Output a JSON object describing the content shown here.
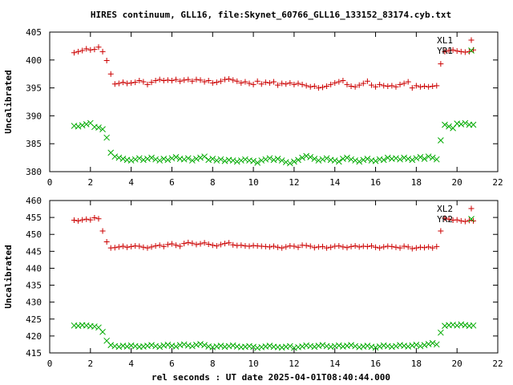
{
  "chart_data": [
    {
      "type": "scatter",
      "title": "HIRES continuum, GLL16, file:Skynet_60766_GLL16_133152_83174.cyb.txt",
      "xlabel": "",
      "ylabel": "Uncalibrated",
      "xlim": [
        0,
        22
      ],
      "ylim": [
        380,
        405
      ],
      "xticks": [
        0,
        2,
        4,
        6,
        8,
        10,
        12,
        14,
        16,
        18,
        20,
        22
      ],
      "yticks": [
        380,
        385,
        390,
        395,
        400,
        405
      ],
      "legend_position": "top-right",
      "grid": false,
      "x": [
        1.2,
        1.4,
        1.6,
        1.8,
        2.0,
        2.2,
        2.4,
        2.6,
        2.8,
        3.0,
        3.2,
        3.4,
        3.6,
        3.8,
        4.0,
        4.2,
        4.4,
        4.6,
        4.8,
        5.0,
        5.2,
        5.4,
        5.6,
        5.8,
        6.0,
        6.2,
        6.4,
        6.6,
        6.8,
        7.0,
        7.2,
        7.4,
        7.6,
        7.8,
        8.0,
        8.2,
        8.4,
        8.6,
        8.8,
        9.0,
        9.2,
        9.4,
        9.6,
        9.8,
        10.0,
        10.2,
        10.4,
        10.6,
        10.8,
        11.0,
        11.2,
        11.4,
        11.6,
        11.8,
        12.0,
        12.2,
        12.4,
        12.6,
        12.8,
        13.0,
        13.2,
        13.4,
        13.6,
        13.8,
        14.0,
        14.2,
        14.4,
        14.6,
        14.8,
        15.0,
        15.2,
        15.4,
        15.6,
        15.8,
        16.0,
        16.2,
        16.4,
        16.6,
        16.8,
        17.0,
        17.2,
        17.4,
        17.6,
        17.8,
        18.0,
        18.2,
        18.4,
        18.6,
        18.8,
        19.0,
        19.2,
        19.4,
        19.6,
        19.8,
        20.0,
        20.2,
        20.4,
        20.6,
        20.8
      ],
      "series": [
        {
          "name": "XL1",
          "marker": "plus",
          "color": "#cc0000",
          "values": [
            401.3,
            401.5,
            401.7,
            402.0,
            401.8,
            401.9,
            402.3,
            401.5,
            399.9,
            397.5,
            395.7,
            395.8,
            396.0,
            395.8,
            395.9,
            396.0,
            396.3,
            396.1,
            395.6,
            396.0,
            396.3,
            396.5,
            396.3,
            396.4,
            396.3,
            396.5,
            396.2,
            396.4,
            396.5,
            396.2,
            396.5,
            396.4,
            396.1,
            396.3,
            395.9,
            396.0,
            396.2,
            396.5,
            396.6,
            396.4,
            396.2,
            395.9,
            396.1,
            395.8,
            395.6,
            396.2,
            395.7,
            396.0,
            395.9,
            396.1,
            395.5,
            395.8,
            395.7,
            395.9,
            395.6,
            395.8,
            395.6,
            395.4,
            395.2,
            395.3,
            395.0,
            395.1,
            395.3,
            395.6,
            395.9,
            396.1,
            396.3,
            395.6,
            395.3,
            395.2,
            395.5,
            395.8,
            396.2,
            395.5,
            395.2,
            395.6,
            395.4,
            395.3,
            395.4,
            395.2,
            395.6,
            395.8,
            396.1,
            395.0,
            395.4,
            395.2,
            395.3,
            395.2,
            395.3,
            395.4,
            399.3,
            401.5,
            401.7,
            401.8,
            401.6,
            401.5,
            401.4,
            401.5,
            401.8
          ]
        },
        {
          "name": "YR1",
          "marker": "cross",
          "color": "#00aa00",
          "values": [
            388.2,
            388.1,
            388.3,
            388.5,
            388.7,
            388.0,
            387.9,
            387.6,
            386.1,
            383.4,
            382.7,
            382.5,
            382.3,
            382.1,
            382.0,
            382.2,
            382.4,
            382.1,
            382.3,
            382.5,
            382.2,
            382.0,
            382.3,
            382.1,
            382.4,
            382.6,
            382.3,
            382.2,
            382.4,
            382.0,
            382.3,
            382.5,
            382.7,
            382.1,
            382.3,
            382.0,
            382.2,
            381.9,
            382.1,
            382.0,
            381.8,
            382.0,
            382.2,
            382.0,
            381.9,
            381.6,
            382.0,
            382.2,
            382.4,
            382.1,
            382.3,
            382.0,
            381.7,
            381.5,
            381.8,
            382.1,
            382.5,
            382.8,
            382.6,
            382.3,
            382.0,
            382.2,
            382.4,
            382.1,
            382.0,
            381.8,
            382.3,
            382.5,
            382.2,
            382.0,
            381.8,
            382.1,
            382.3,
            382.0,
            381.9,
            382.2,
            382.1,
            382.5,
            382.3,
            382.4,
            382.2,
            382.5,
            382.3,
            382.1,
            382.4,
            382.6,
            382.3,
            382.7,
            382.5,
            382.2,
            385.6,
            388.4,
            388.1,
            387.8,
            388.6,
            388.5,
            388.7,
            388.4,
            388.4
          ]
        }
      ]
    },
    {
      "type": "scatter",
      "title": "",
      "xlabel": "rel seconds : UT date 2025-04-01T08:40:44.000",
      "ylabel": "Uncalibrated",
      "xlim": [
        0,
        22
      ],
      "ylim": [
        415,
        460
      ],
      "xticks": [
        0,
        2,
        4,
        6,
        8,
        10,
        12,
        14,
        16,
        18,
        20,
        22
      ],
      "yticks": [
        415,
        420,
        425,
        430,
        435,
        440,
        445,
        450,
        455,
        460
      ],
      "legend_position": "top-right",
      "grid": false,
      "x": [
        1.2,
        1.4,
        1.6,
        1.8,
        2.0,
        2.2,
        2.4,
        2.6,
        2.8,
        3.0,
        3.2,
        3.4,
        3.6,
        3.8,
        4.0,
        4.2,
        4.4,
        4.6,
        4.8,
        5.0,
        5.2,
        5.4,
        5.6,
        5.8,
        6.0,
        6.2,
        6.4,
        6.6,
        6.8,
        7.0,
        7.2,
        7.4,
        7.6,
        7.8,
        8.0,
        8.2,
        8.4,
        8.6,
        8.8,
        9.0,
        9.2,
        9.4,
        9.6,
        9.8,
        10.0,
        10.2,
        10.4,
        10.6,
        10.8,
        11.0,
        11.2,
        11.4,
        11.6,
        11.8,
        12.0,
        12.2,
        12.4,
        12.6,
        12.8,
        13.0,
        13.2,
        13.4,
        13.6,
        13.8,
        14.0,
        14.2,
        14.4,
        14.6,
        14.8,
        15.0,
        15.2,
        15.4,
        15.6,
        15.8,
        16.0,
        16.2,
        16.4,
        16.6,
        16.8,
        17.0,
        17.2,
        17.4,
        17.6,
        17.8,
        18.0,
        18.2,
        18.4,
        18.6,
        18.8,
        19.0,
        19.2,
        19.4,
        19.6,
        19.8,
        20.0,
        20.2,
        20.4,
        20.6,
        20.8
      ],
      "series": [
        {
          "name": "XL2",
          "marker": "plus",
          "color": "#cc0000",
          "values": [
            454.2,
            454.0,
            454.3,
            454.5,
            454.3,
            454.9,
            454.6,
            451.0,
            447.8,
            446.0,
            446.1,
            446.3,
            446.5,
            446.2,
            446.4,
            446.6,
            446.5,
            446.2,
            446.0,
            446.3,
            446.6,
            446.8,
            446.4,
            447.0,
            447.2,
            446.8,
            446.5,
            447.3,
            447.6,
            447.4,
            447.0,
            447.2,
            447.5,
            447.1,
            446.8,
            446.6,
            447.0,
            447.3,
            447.5,
            446.9,
            446.7,
            446.8,
            446.6,
            446.5,
            446.7,
            446.6,
            446.5,
            446.4,
            446.3,
            446.5,
            446.2,
            446.0,
            446.3,
            446.6,
            446.5,
            446.2,
            446.8,
            446.7,
            446.5,
            446.1,
            446.3,
            446.4,
            446.0,
            446.2,
            446.5,
            446.6,
            446.3,
            446.1,
            446.4,
            446.6,
            446.3,
            446.5,
            446.4,
            446.6,
            446.2,
            446.0,
            446.3,
            446.5,
            446.4,
            446.2,
            446.0,
            446.5,
            446.3,
            445.8,
            446.0,
            446.2,
            446.1,
            446.3,
            446.0,
            446.4,
            451.0,
            454.8,
            454.5,
            454.2,
            454.3,
            454.0,
            453.8,
            454.1,
            454.0
          ]
        },
        {
          "name": "YR2",
          "marker": "cross",
          "color": "#00aa00",
          "values": [
            423.1,
            423.0,
            423.2,
            423.1,
            422.9,
            422.8,
            422.5,
            421.2,
            418.6,
            417.3,
            417.0,
            416.8,
            417.1,
            416.9,
            417.2,
            417.0,
            416.8,
            416.9,
            417.1,
            417.3,
            417.0,
            416.8,
            417.2,
            417.4,
            417.1,
            416.9,
            417.3,
            417.5,
            417.2,
            417.0,
            417.4,
            417.6,
            417.3,
            416.9,
            416.7,
            416.9,
            417.1,
            416.8,
            417.0,
            417.2,
            416.9,
            416.7,
            416.8,
            417.0,
            416.8,
            416.5,
            416.7,
            416.9,
            417.1,
            416.8,
            416.7,
            416.6,
            416.8,
            417.0,
            416.5,
            416.7,
            416.9,
            417.2,
            417.0,
            416.8,
            417.1,
            417.3,
            417.0,
            416.8,
            417.0,
            417.2,
            416.9,
            417.1,
            417.3,
            417.0,
            416.7,
            416.9,
            417.1,
            416.8,
            416.6,
            416.9,
            417.2,
            417.0,
            416.8,
            417.0,
            417.3,
            417.1,
            416.9,
            417.2,
            417.4,
            417.0,
            417.3,
            417.6,
            417.9,
            417.5,
            421.0,
            423.0,
            423.2,
            423.3,
            423.1,
            423.4,
            423.2,
            423.0,
            423.1
          ]
        }
      ]
    }
  ]
}
